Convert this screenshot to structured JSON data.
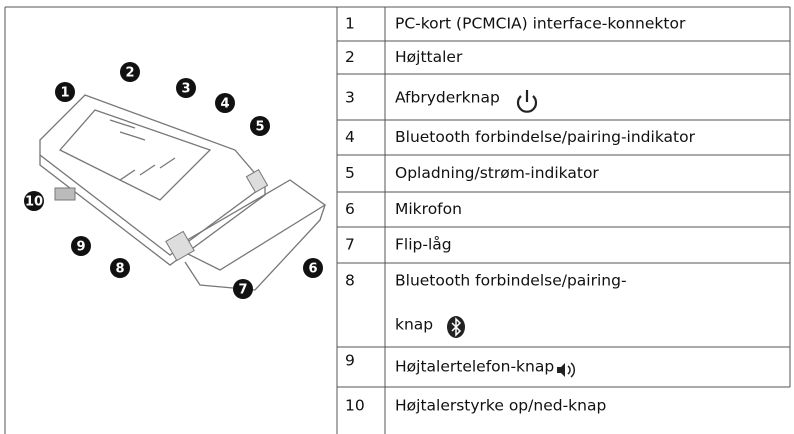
{
  "diagram": {
    "callouts": [
      "1",
      "2",
      "3",
      "4",
      "5",
      "6",
      "7",
      "8",
      "9",
      "10"
    ]
  },
  "table": {
    "rows": [
      [
        "1",
        "PC-kort (PCMCIA) interface-konnektor"
      ],
      [
        "2",
        "Højttaler"
      ],
      [
        "3",
        "Afbryderknap"
      ],
      [
        "4",
        "Bluetooth forbindelse/pairing-indikator"
      ],
      [
        "5",
        "Opladning/strøm-indikator"
      ],
      [
        "6",
        "Mikrofon"
      ],
      [
        "7",
        "Flip-låg"
      ],
      [
        "8",
        "Bluetooth forbindelse/pairing-",
        "knap"
      ],
      [
        "9",
        "Højtalertelefon-knap"
      ],
      [
        "10",
        "Højtalerstyrke op/ned-knap"
      ]
    ]
  }
}
